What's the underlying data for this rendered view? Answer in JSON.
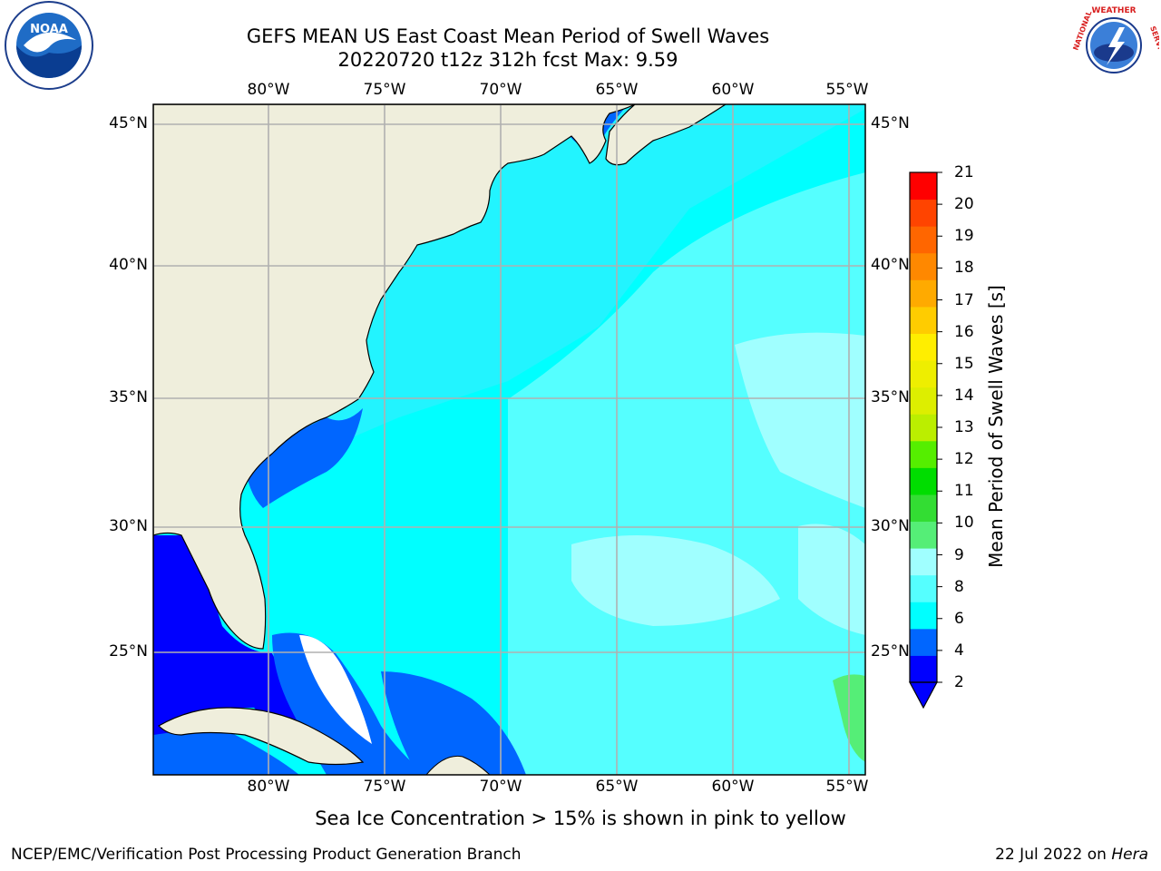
{
  "header": {
    "title_line1": "GEFS MEAN US East Coast Mean Period of Swell Waves",
    "title_line2": "20220720 t12z 312h fcst   Max: 9.59"
  },
  "logos": {
    "left": {
      "name": "noaa-logo",
      "text": "NOAA"
    },
    "right": {
      "name": "nws-logo",
      "text": "NATIONAL WEATHER SERVICE"
    }
  },
  "map": {
    "longitude_labels": [
      "80°W",
      "75°W",
      "70°W",
      "65°W",
      "60°W",
      "55°W"
    ],
    "latitude_labels": [
      "45°N",
      "40°N",
      "35°N",
      "30°N",
      "25°N"
    ],
    "land_color": "#efeedc",
    "gridline_color": "#b0b0b0"
  },
  "colorbar": {
    "title": "Mean Period of Swell Waves [s]",
    "ticks": [
      "21",
      "20",
      "19",
      "18",
      "17",
      "16",
      "15",
      "14",
      "13",
      "12",
      "11",
      "10",
      "9",
      "8",
      "6",
      "4",
      "2"
    ],
    "colors": [
      "#0000ff",
      "#0066ff",
      "#00ffff",
      "#55ffff",
      "#a0ffff",
      "#55ee77",
      "#33dd33",
      "#00dd00",
      "#55ee00",
      "#bbee00",
      "#ddee00",
      "#eeee00",
      "#ffee00",
      "#ffcc00",
      "#ffaa00",
      "#ff8800",
      "#ff6600",
      "#ff4400",
      "#ff0000"
    ]
  },
  "note": "Sea Ice Concentration > 15% is shown in pink to yellow",
  "footer": {
    "left": "NCEP/EMC/Verification Post Processing Product Generation Branch",
    "right_date": "22 Jul 2022 on ",
    "right_machine": "Hera"
  }
}
